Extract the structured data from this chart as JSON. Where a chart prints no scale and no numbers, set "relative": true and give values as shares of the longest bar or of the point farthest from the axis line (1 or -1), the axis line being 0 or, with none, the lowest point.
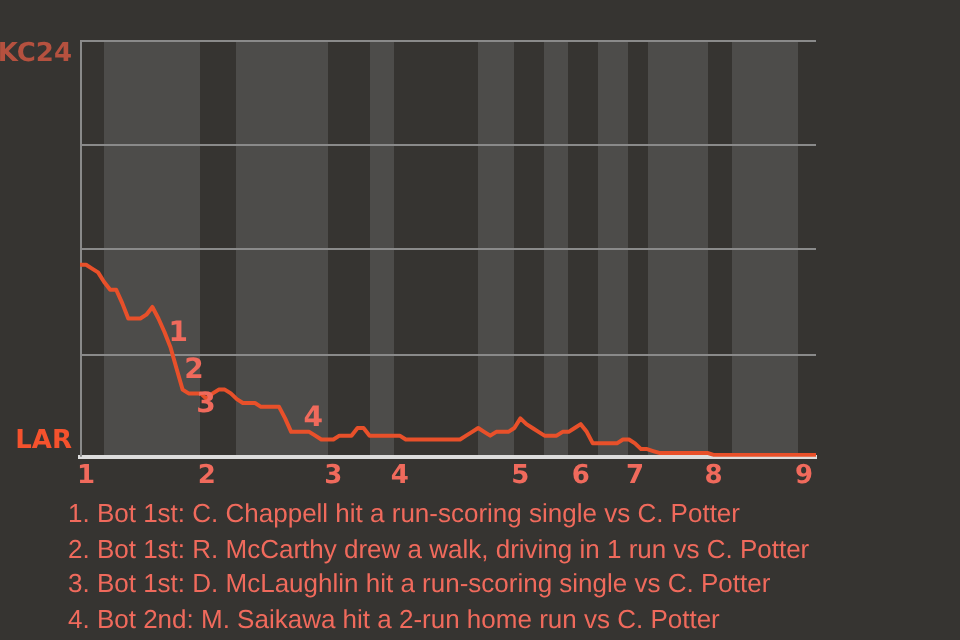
{
  "chart_data": {
    "type": "line",
    "relative": true,
    "categories": [
      null,
      "1",
      null,
      null,
      null,
      null,
      null,
      null,
      null,
      null,
      null,
      null,
      null,
      null,
      null,
      null,
      null,
      null,
      null,
      null,
      null,
      "2",
      null,
      null,
      null,
      null,
      null,
      null,
      null,
      null,
      null,
      null,
      null,
      null,
      null,
      null,
      null,
      null,
      null,
      null,
      null,
      null,
      "3",
      null,
      null,
      null,
      null,
      null,
      null,
      null,
      null,
      null,
      null,
      "4",
      null,
      null,
      null,
      null,
      null,
      null,
      null,
      null,
      null,
      null,
      null,
      null,
      null,
      null,
      null,
      null,
      null,
      null,
      null,
      "5",
      null,
      null,
      null,
      null,
      null,
      null,
      null,
      null,
      null,
      "6",
      null,
      null,
      null,
      null,
      null,
      null,
      null,
      null,
      "7",
      null,
      null,
      null,
      null,
      null,
      null,
      null,
      null,
      null,
      null,
      null,
      null,
      "8",
      null,
      null,
      null,
      null,
      null,
      null,
      null,
      null,
      null,
      null,
      null,
      null,
      null,
      null,
      "9",
      null,
      null
    ],
    "series": [
      {
        "color": "#e8502a",
        "values": [
          1,
          1,
          0.98,
          0.96,
          0.91,
          0.87,
          0.87,
          0.8,
          0.72,
          0.72,
          0.72,
          0.74,
          0.78,
          0.72,
          0.65,
          0.57,
          0.46,
          0.35,
          0.33,
          0.33,
          0.33,
          0.3,
          0.33,
          0.35,
          0.35,
          0.33,
          0.3,
          0.28,
          0.28,
          0.28,
          0.26,
          0.26,
          0.26,
          0.26,
          0.2,
          0.13,
          0.13,
          0.13,
          0.13,
          0.11,
          0.09,
          0.09,
          0.09,
          0.11,
          0.11,
          0.11,
          0.15,
          0.15,
          0.11,
          0.11,
          0.11,
          0.11,
          0.11,
          0.11,
          0.09,
          0.09,
          0.09,
          0.09,
          0.09,
          0.09,
          0.09,
          0.09,
          0.09,
          0.09,
          0.11,
          0.13,
          0.15,
          0.13,
          0.11,
          0.13,
          0.13,
          0.13,
          0.15,
          0.2,
          0.17,
          0.15,
          0.13,
          0.11,
          0.11,
          0.11,
          0.13,
          0.13,
          0.15,
          0.17,
          0.13,
          0.07,
          0.07,
          0.07,
          0.07,
          0.07,
          0.09,
          0.09,
          0.07,
          0.04,
          0.04,
          0.03,
          0.02,
          0.02,
          0.02,
          0.02,
          0.02,
          0.02,
          0.02,
          0.02,
          0.02,
          0.01,
          0.01,
          0.01,
          0.01,
          0.01,
          0.01,
          0.01,
          0.01,
          0.01,
          0.01,
          0.01,
          0.01,
          0.01,
          0.01,
          0.01,
          0.01,
          0.01,
          0.01
        ]
      }
    ],
    "ref_lines": [
      {
        "axis": "y",
        "value": 0.54,
        "color": "#8a8a8a"
      },
      {
        "axis": "y",
        "value": 1.09,
        "color": "#8a8a8a"
      },
      {
        "axis": "y",
        "value": 1.63,
        "color": "#8a8a8a"
      },
      {
        "axis": "y",
        "value": 2.17,
        "color": "#8a8a8a"
      }
    ],
    "legend": false,
    "marker": "none",
    "line_style": "solid",
    "annotations": [
      "1",
      "2",
      "3",
      "4",
      "KC24",
      "LAR",
      "1. Bot 1st: C. Chappell hit a run-scoring single vs C. Potter",
      "2. Bot 1st: R. McCarthy drew a walk, driving in 1 run vs C. Potter",
      "3. Bot 1st: D. McLaughlin hit a run-scoring single vs C. Potter",
      "4. Bot 2nd: M. Saikawa hit a 2-run home run vs C. Potter"
    ]
  }
}
